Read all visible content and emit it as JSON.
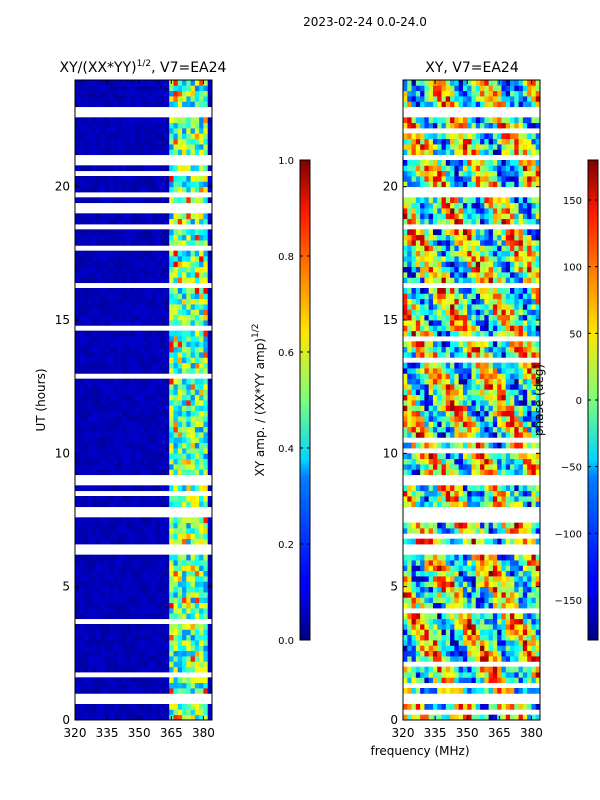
{
  "suptitle": "2023-02-24 0.0-24.0",
  "xlabel_shared": "frequency (MHz)",
  "chart_data": [
    {
      "type": "heatmap",
      "title_main": "XY/(XX*YY)",
      "title_exp": "1/2",
      "title_tail": ", V7=EA24",
      "ylabel": "UT (hours)",
      "xlim": [
        320,
        384
      ],
      "ylim": [
        0,
        24
      ],
      "xticks": [
        320,
        335,
        350,
        365,
        380
      ],
      "yticks": [
        0,
        5,
        10,
        15,
        20
      ],
      "colorbar": {
        "label_main": "XY amp. / (XX*YY amp)",
        "label_exp": "1/2",
        "range": [
          0.0,
          1.0
        ],
        "ticks": [
          "0.0",
          "0.2",
          "0.4",
          "0.6",
          "0.8",
          "1.0"
        ],
        "tick_values": [
          0.0,
          0.2,
          0.4,
          0.6,
          0.8,
          1.0
        ],
        "colormap": "jet"
      },
      "background_value": 0.03,
      "active_band_mhz": [
        364,
        381
      ],
      "flagged_hours": [
        [
          0.7,
          1.0
        ],
        [
          6.2,
          6.5
        ],
        [
          7.7,
          8.0
        ],
        [
          18.3,
          18.6
        ],
        [
          19.7,
          19.8
        ],
        [
          22.6,
          22.7
        ],
        [
          22.8,
          23.0
        ]
      ]
    },
    {
      "type": "heatmap",
      "title": "XY, V7=EA24",
      "ylabel": "",
      "xlim": [
        320,
        384
      ],
      "ylim": [
        0,
        24
      ],
      "xticks": [
        320,
        335,
        350,
        365,
        380
      ],
      "yticks": [
        0,
        5,
        10,
        15,
        20
      ],
      "colorbar": {
        "label": "phase (deg)",
        "range": [
          -180,
          180
        ],
        "ticks": [
          "−150",
          "−100",
          "−50",
          "0",
          "50",
          "100",
          "150"
        ],
        "tick_values": [
          -150,
          -100,
          -50,
          0,
          50,
          100,
          150
        ],
        "colormap": "jet"
      },
      "flagged_hours": [
        [
          0.7,
          1.0
        ],
        [
          6.2,
          6.5
        ],
        [
          7.7,
          8.0
        ],
        [
          18.3,
          18.6
        ],
        [
          19.7,
          19.8
        ],
        [
          22.6,
          22.7
        ],
        [
          22.8,
          23.0
        ]
      ]
    }
  ]
}
